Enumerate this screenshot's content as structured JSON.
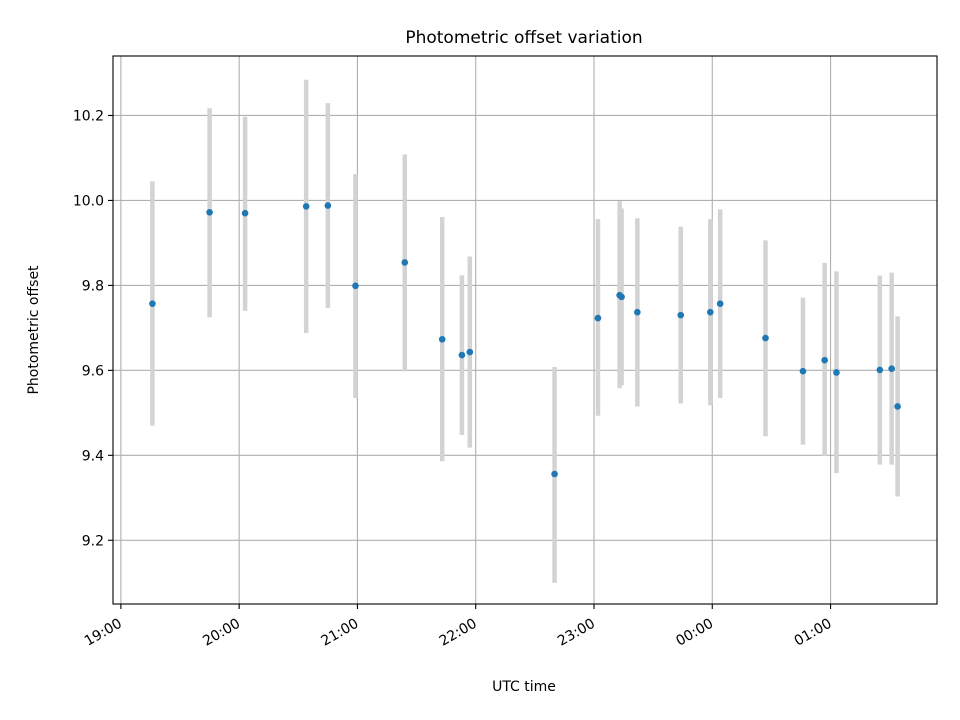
{
  "chart_data": {
    "type": "scatter",
    "title": "Photometric offset variation",
    "xlabel": "UTC time",
    "ylabel": "Photometric offset",
    "grid": true,
    "xlim": [
      "18:56",
      "01:54"
    ],
    "ylim": [
      9.05,
      10.34
    ],
    "xticks": [
      "19:00",
      "20:00",
      "21:00",
      "22:00",
      "23:00",
      "00:00",
      "01:00"
    ],
    "yticks": [
      "9.2",
      "9.4",
      "9.6",
      "9.8",
      "10.0",
      "10.2"
    ],
    "marker_color": "#1f77b4",
    "errorbar_color": "#d3d3d3",
    "points": [
      {
        "time": "19:16",
        "y": 9.757,
        "err_low": 9.47,
        "err_high": 10.045
      },
      {
        "time": "19:45",
        "y": 9.972,
        "err_low": 9.725,
        "err_high": 10.217
      },
      {
        "time": "20:03",
        "y": 9.97,
        "err_low": 9.74,
        "err_high": 10.197
      },
      {
        "time": "20:34",
        "y": 9.986,
        "err_low": 9.688,
        "err_high": 10.284
      },
      {
        "time": "20:45",
        "y": 9.988,
        "err_low": 9.747,
        "err_high": 10.229
      },
      {
        "time": "20:59",
        "y": 9.799,
        "err_low": 9.535,
        "err_high": 10.062
      },
      {
        "time": "21:24",
        "y": 9.854,
        "err_low": 9.598,
        "err_high": 10.108
      },
      {
        "time": "21:43",
        "y": 9.673,
        "err_low": 9.386,
        "err_high": 9.961
      },
      {
        "time": "21:53",
        "y": 9.636,
        "err_low": 9.448,
        "err_high": 9.824
      },
      {
        "time": "21:57",
        "y": 9.643,
        "err_low": 9.418,
        "err_high": 9.868
      },
      {
        "time": "22:40",
        "y": 9.356,
        "err_low": 9.1,
        "err_high": 9.608
      },
      {
        "time": "23:02",
        "y": 9.723,
        "err_low": 9.493,
        "err_high": 9.956
      },
      {
        "time": "23:13",
        "y": 9.777,
        "err_low": 9.558,
        "err_high": 9.998
      },
      {
        "time": "23:14",
        "y": 9.773,
        "err_low": 9.565,
        "err_high": 9.981
      },
      {
        "time": "23:22",
        "y": 9.737,
        "err_low": 9.515,
        "err_high": 9.958
      },
      {
        "time": "23:44",
        "y": 9.73,
        "err_low": 9.522,
        "err_high": 9.938
      },
      {
        "time": "23:59",
        "y": 9.737,
        "err_low": 9.518,
        "err_high": 9.956
      },
      {
        "time": "00:04",
        "y": 9.757,
        "err_low": 9.535,
        "err_high": 9.979
      },
      {
        "time": "00:27",
        "y": 9.676,
        "err_low": 9.445,
        "err_high": 9.906
      },
      {
        "time": "00:46",
        "y": 9.598,
        "err_low": 9.425,
        "err_high": 9.771
      },
      {
        "time": "00:57",
        "y": 9.624,
        "err_low": 9.398,
        "err_high": 9.853
      },
      {
        "time": "01:03",
        "y": 9.595,
        "err_low": 9.358,
        "err_high": 9.833
      },
      {
        "time": "01:25",
        "y": 9.601,
        "err_low": 9.378,
        "err_high": 9.823
      },
      {
        "time": "01:31",
        "y": 9.604,
        "err_low": 9.378,
        "err_high": 9.83
      },
      {
        "time": "01:34",
        "y": 9.515,
        "err_low": 9.303,
        "err_high": 9.727
      }
    ]
  }
}
